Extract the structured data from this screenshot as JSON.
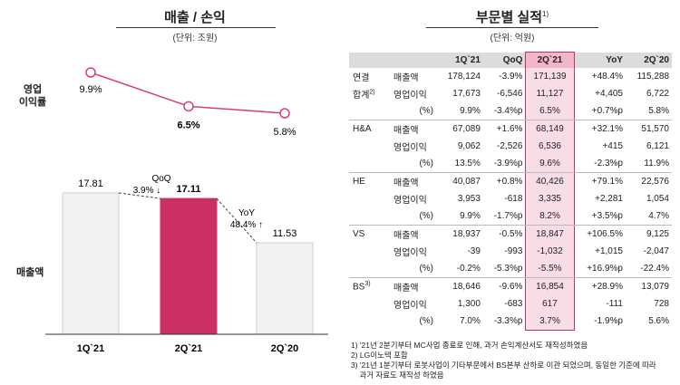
{
  "left": {
    "title": "매출 / 손익",
    "unit": "(단위: 조원)",
    "op_label_line1": "영업",
    "op_label_line2": "이익률",
    "sales_label": "매출액",
    "qoq_label": "QoQ",
    "qoq_value": "3.9% ↓",
    "yoy_label": "YoY",
    "yoy_value": "48.4% ↑"
  },
  "chart_data": [
    {
      "type": "line",
      "title": "영업이익률",
      "categories": [
        "1Q`21",
        "2Q`21",
        "2Q`20"
      ],
      "values": [
        9.9,
        6.5,
        5.8
      ],
      "labels": [
        "9.9%",
        "6.5%",
        "5.8%"
      ],
      "ylim": [
        5,
        11
      ]
    },
    {
      "type": "bar",
      "title": "매출액",
      "categories": [
        "1Q`21",
        "2Q`21",
        "2Q`20"
      ],
      "values": [
        17.81,
        17.11,
        11.53
      ],
      "labels": [
        "17.81",
        "17.11",
        "11.53"
      ],
      "colors": [
        "#f2f2f2",
        "#cc2f62",
        "#f2f2f2"
      ],
      "ylim": [
        0,
        20
      ]
    }
  ],
  "right": {
    "title": "부문별 실적",
    "title_sup": "1)",
    "unit": "(단위: 억원)",
    "headers": [
      "",
      "",
      "1Q`21",
      "QoQ",
      "2Q`21",
      "YoY",
      "2Q`20"
    ],
    "groups": [
      {
        "seg1": "연결",
        "seg2": "합계",
        "sup": "2)",
        "rows": [
          {
            "metric": "매출액",
            "vals": [
              "178,124",
              "-3.9%",
              "171,139",
              "+48.4%",
              "115,288"
            ]
          },
          {
            "metric": "영업이익",
            "vals": [
              "17,673",
              "-6,546",
              "11,127",
              "+4,405",
              "6,722"
            ]
          },
          {
            "metric": "(%)",
            "vals": [
              "9.9%",
              "-3.4%p",
              "6.5%",
              "+0.7%p",
              "5.8%"
            ]
          }
        ]
      },
      {
        "seg1": "H&A",
        "seg2": "",
        "sup": "",
        "rows": [
          {
            "metric": "매출액",
            "vals": [
              "67,089",
              "+1.6%",
              "68,149",
              "+32.1%",
              "51,570"
            ]
          },
          {
            "metric": "영업이익",
            "vals": [
              "9,062",
              "-2,526",
              "6,536",
              "+415",
              "6,121"
            ]
          },
          {
            "metric": "(%)",
            "vals": [
              "13.5%",
              "-3.9%p",
              "9.6%",
              "-2.3%p",
              "11.9%"
            ]
          }
        ]
      },
      {
        "seg1": "HE",
        "seg2": "",
        "sup": "",
        "rows": [
          {
            "metric": "매출액",
            "vals": [
              "40,087",
              "+0.8%",
              "40,426",
              "+79.1%",
              "22,576"
            ]
          },
          {
            "metric": "영업이익",
            "vals": [
              "3,953",
              "-618",
              "3,335",
              "+2,281",
              "1,054"
            ]
          },
          {
            "metric": "(%)",
            "vals": [
              "9.9%",
              "-1.7%p",
              "8.2%",
              "+3.5%p",
              "4.7%"
            ]
          }
        ]
      },
      {
        "seg1": "VS",
        "seg2": "",
        "sup": "",
        "rows": [
          {
            "metric": "매출액",
            "vals": [
              "18,937",
              "-0.5%",
              "18,847",
              "+106.5%",
              "9,125"
            ]
          },
          {
            "metric": "영업이익",
            "vals": [
              "-39",
              "-993",
              "-1,032",
              "+1,015",
              "-2,047"
            ]
          },
          {
            "metric": "(%)",
            "vals": [
              "-0.2%",
              "-5.3%p",
              "-5.5%",
              "+16.9%p",
              "-22.4%"
            ]
          }
        ]
      },
      {
        "seg1": "BS",
        "seg2": "",
        "sup": "3)",
        "rows": [
          {
            "metric": "매출액",
            "vals": [
              "18,646",
              "-9.6%",
              "16,854",
              "+28.9%",
              "13,079"
            ]
          },
          {
            "metric": "영업이익",
            "vals": [
              "1,300",
              "-683",
              "617",
              "-111",
              "728"
            ]
          },
          {
            "metric": "(%)",
            "vals": [
              "7.0%",
              "-3.3%p",
              "3.7%",
              "-1.9%p",
              "5.6%"
            ]
          }
        ]
      }
    ],
    "notes": [
      "1) '21년 2분기부터 MC사업 종료로 인해, 과거 손익계산서도 재작성하였음",
      "2) LG이노텍 포함",
      "3) '21년 1분기부터 로봇사업이 기타부문에서 BS본부 산하로 이관 되었으며, 동일한 기준에 따라",
      "    과거 자료도 재작성 하였음"
    ]
  }
}
